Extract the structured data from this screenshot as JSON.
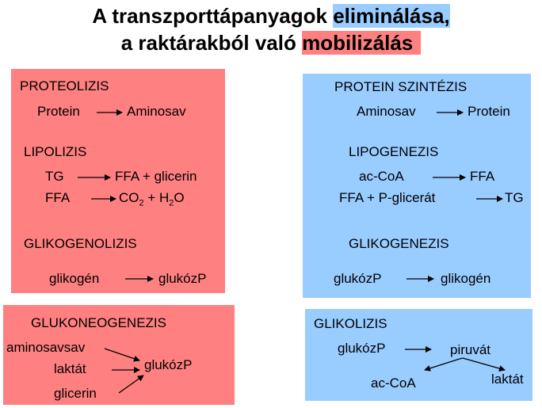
{
  "title": {
    "line1_prefix": "A  transzporttápanyagok ",
    "line1_highlight": "eliminálása,",
    "line2_prefix": "a raktárakból való ",
    "line2_highlight": "mobilizálás",
    "colors": {
      "line1_highlight": "#99ccff",
      "line2_highlight": "#ff8080"
    }
  },
  "colors": {
    "red_box": "#ff8080",
    "blue_box": "#99ccff"
  },
  "left_top": {
    "proteolizis": {
      "heading": "PROTEOLIZIS",
      "from": "Protein",
      "to": "Aminosav"
    },
    "lipolizis": {
      "heading": "LIPOLIZIS",
      "row1_from": "TG",
      "row1_to": "FFA + glicerin",
      "row2_from": "FFA",
      "row2_to_co": "CO",
      "row2_to_co_sub": "2",
      "row2_to_plus": " + H",
      "row2_to_h_sub": "2",
      "row2_to_o": "O"
    },
    "glikogenolizis": {
      "heading": "GLIKOGENOLIZIS",
      "from": "glikogén",
      "to": "glukózP"
    }
  },
  "right_top": {
    "protein_szintezis": {
      "heading": "PROTEIN SZINTÉZIS",
      "from": "Aminosav",
      "to": "Protein"
    },
    "lipogenezis": {
      "heading": "LIPOGENEZIS",
      "row1_from": "ac-CoA",
      "row1_to": "FFA",
      "row2_from": "FFA + P-glicerát",
      "row2_to": "TG"
    },
    "glikogenezis": {
      "heading": "GLIKOGENEZIS",
      "from": "glukózP",
      "to": "glikogén"
    }
  },
  "left_bottom": {
    "heading": "GLUKONEOGENEZIS",
    "sources": [
      "aminosavsav",
      "laktát",
      "glicerin"
    ],
    "target": "glukózP"
  },
  "right_bottom": {
    "heading": "GLIKOLIZIS",
    "from": "glukózP",
    "to": "piruvát",
    "branch_left": "ac-CoA",
    "branch_right": "laktát"
  }
}
